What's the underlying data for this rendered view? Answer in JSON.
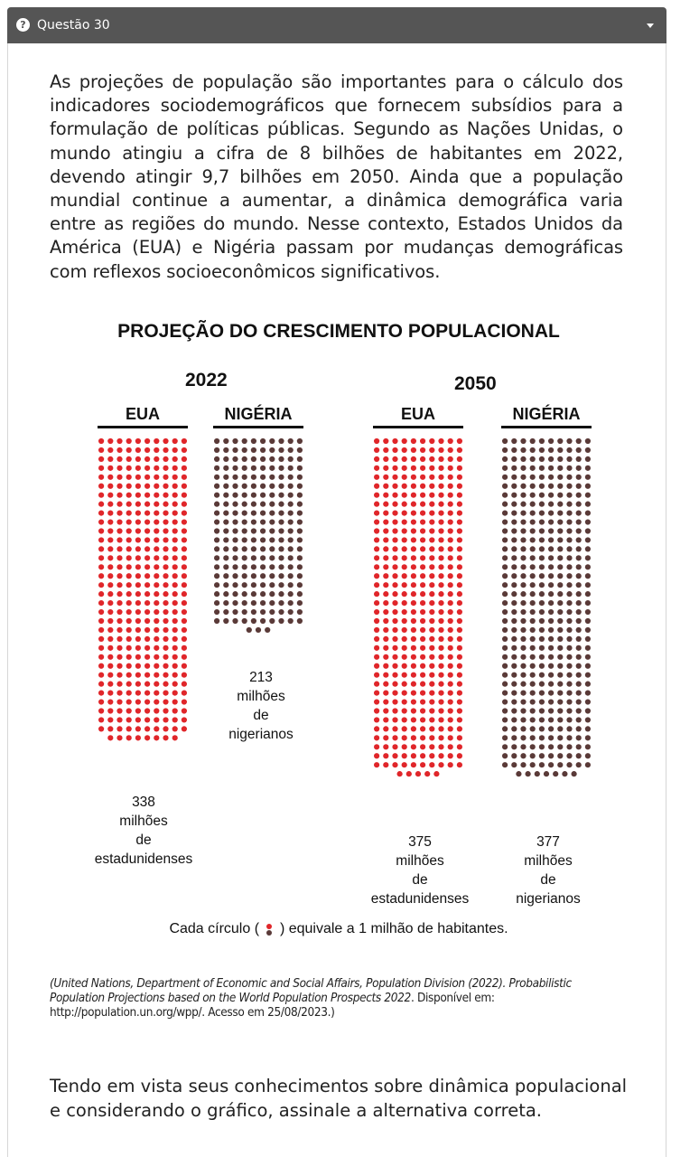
{
  "header": {
    "title": "Questão 30",
    "help_icon": "question-circle-icon",
    "dropdown_icon": "caret-down-icon"
  },
  "intro_text": "As projeções de população são importantes para o cálculo dos indicadores sociodemográficos que fornecem subsídios para a formulação de políticas públicas. Segundo as Nações Unidas, o mundo atingiu a cifra de 8 bilhões de habitantes em 2022, devendo atingir 9,7 bilhões em 2050. Ainda que a população mundial continue a aumentar, a dinâmica demográfica varia entre as regiões do mundo. Nesse contexto, Estados Unidos da América (EUA) e Nigéria passam por mudanças demográficas com reflexos socioeconômicos significativos.",
  "chart_data": {
    "type": "dot-matrix",
    "title": "PROJEÇÃO DO CRESCIMENTO POPULACIONAL",
    "unit_note": "Cada círculo equivale a 1 milhão de habitantes.",
    "groups": [
      {
        "year": "2022",
        "series": [
          {
            "name": "EUA",
            "value": 338,
            "caption": [
              "338",
              "milhões",
              "de",
              "estadunidenses"
            ],
            "color": "#e0262a"
          },
          {
            "name": "NIGÉRIA",
            "value": 213,
            "caption": [
              "213",
              "milhões",
              "de",
              "nigerianos"
            ],
            "color": "#5a3a38"
          }
        ]
      },
      {
        "year": "2050",
        "series": [
          {
            "name": "EUA",
            "value": 375,
            "caption": [
              "375",
              "milhões",
              "de",
              "estadunidenses"
            ],
            "color": "#e0262a"
          },
          {
            "name": "NIGÉRIA",
            "value": 377,
            "caption": [
              "377",
              "milhões",
              "de",
              "nigerianos"
            ],
            "color": "#5a3a38"
          }
        ]
      }
    ]
  },
  "legend": {
    "before": "Cada círculo (",
    "after": ") equivale a 1 milhão de habitantes.",
    "colors": [
      "#e0262a",
      "#5a3a38"
    ]
  },
  "source": {
    "prefix": "(",
    "italic_part": "United Nations, Department of Economic and Social Affairs, Population Division (2022). Probabilistic Population Projections based on the World Population Prospects 2022",
    "rest": ". Disponível em: http://population.un.org/wpp/. Acesso em 25/08/2023.)"
  },
  "question_text": "Tendo em vista seus conhecimentos sobre dinâmica populacional e considerando o gráfico, assinale a alternativa correta."
}
